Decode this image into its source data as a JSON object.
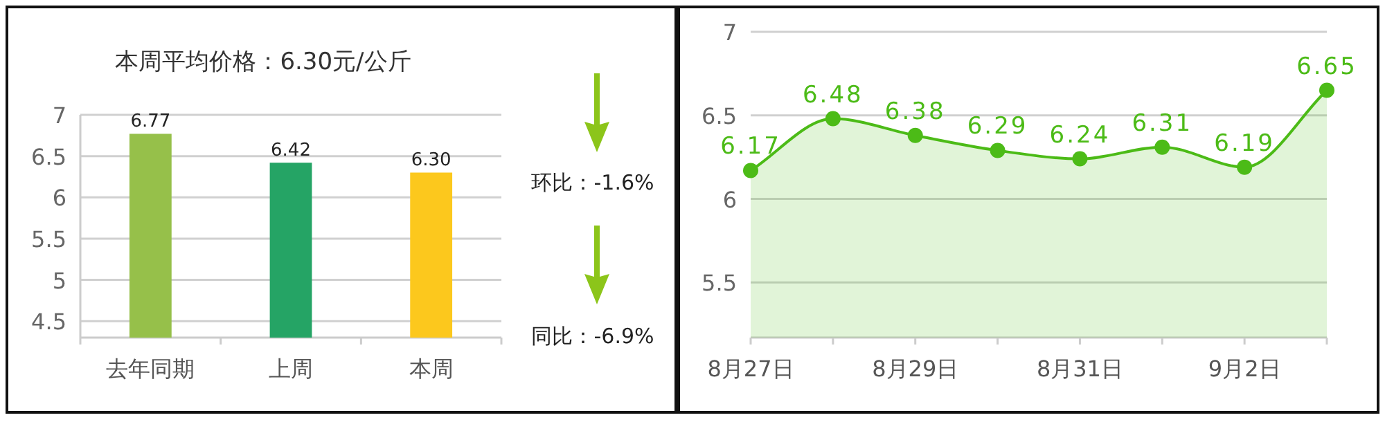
{
  "chart_data": [
    {
      "type": "bar",
      "title": "本周平均价格：6.30元/公斤",
      "categories": [
        "去年同期",
        "上周",
        "本周"
      ],
      "values": [
        6.77,
        6.42,
        6.3
      ],
      "value_labels": [
        "6.77",
        "6.42",
        "6.30"
      ],
      "colors": [
        "#96c04a",
        "#25a465",
        "#fcc81d"
      ],
      "ylim": [
        4.3,
        7
      ],
      "yticks": [
        4.5,
        5,
        5.5,
        6,
        6.5,
        7
      ],
      "grid": "y",
      "annotations": [
        "环比：-1.6%",
        "同比：-6.9%"
      ]
    },
    {
      "type": "area",
      "categories": [
        "8月27日",
        null,
        "8月29日",
        null,
        "8月31日",
        null,
        "9月2日",
        null
      ],
      "values": [
        6.17,
        6.48,
        6.38,
        6.29,
        6.24,
        6.31,
        6.19,
        6.65
      ],
      "value_labels": [
        "6.17",
        "6.48",
        "6.38",
        "6.29",
        "6.24",
        "6.31",
        "6.19",
        "6.65"
      ],
      "color": "#4cbb17",
      "ylim": [
        5.17,
        7
      ],
      "yticks": [
        5.5,
        6,
        6.5,
        7
      ],
      "grid": "y",
      "marker": "circle"
    }
  ]
}
